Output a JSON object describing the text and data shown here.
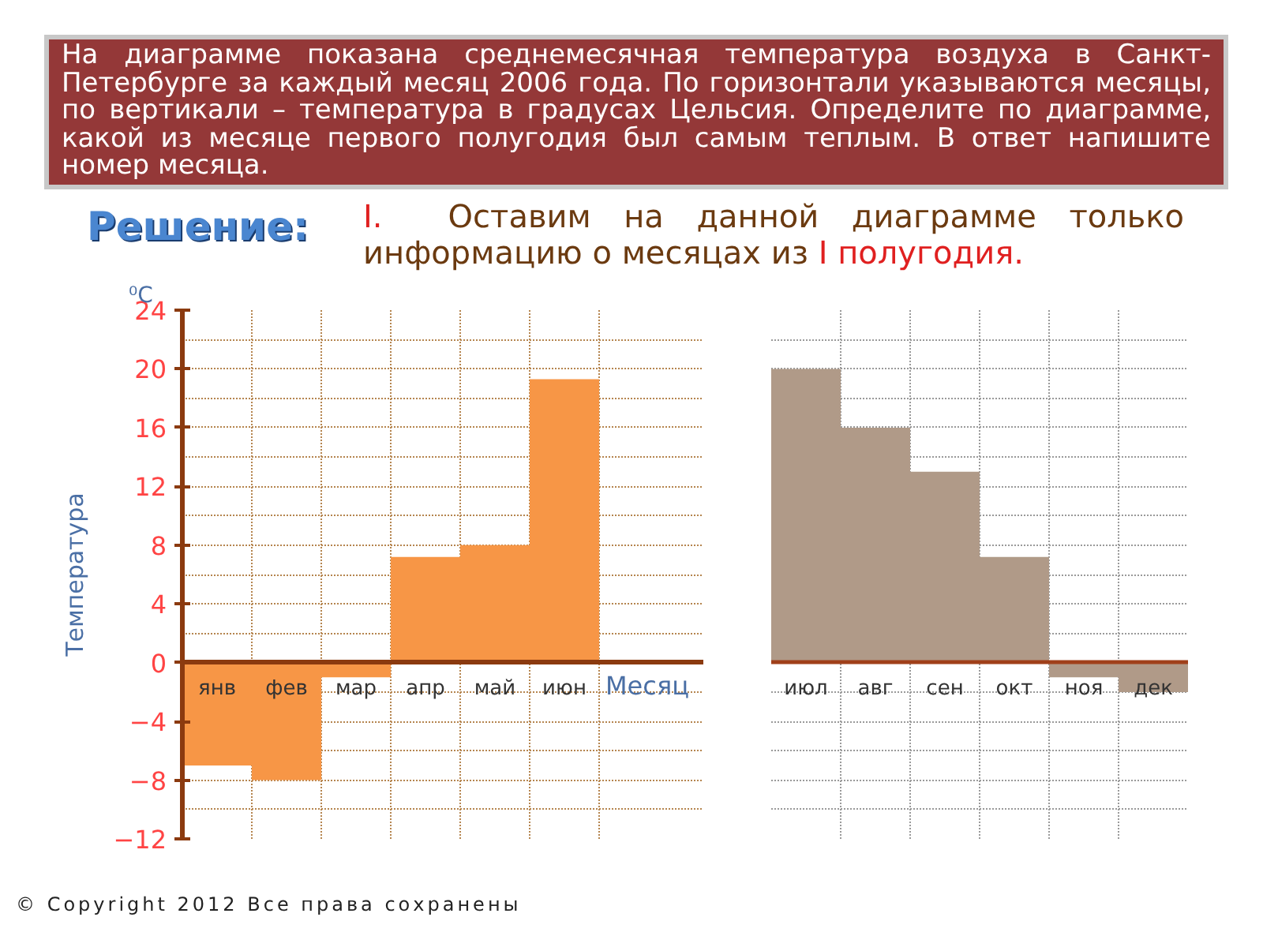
{
  "chart_data": [
    {
      "type": "bar",
      "title": "На диаграмме показана среднемесячная температура воздуха в Санкт-Петербурге за каждый месяц 2006 года. По горизонтали указываются месяцы, по вертикали – температура в градусах Цельсия. Определите по диаграмме, какой из месяце первого полугодия был самым теплым. В ответ напишите номер месяца.",
      "annotations": [
        "Решение:",
        "I.",
        "Оставим на данной диаграмме только информацию о месяцах из",
        "I полугодия.",
        "⁰C",
        "© Copyright 2012 Все права сохранены"
      ],
      "xlabel": "Месяц",
      "ylabel": "Температура",
      "categories": [
        "янв",
        "фев",
        "мар",
        "апр",
        "май",
        "июн"
      ],
      "values": [
        -7,
        -8,
        -1,
        7.2,
        8,
        19.3
      ],
      "color": "#f79646",
      "ylim": [
        -12,
        24
      ],
      "yticks": [
        -12,
        -8,
        -4,
        0,
        4,
        8,
        12,
        16,
        20,
        24
      ],
      "grid": true
    },
    {
      "type": "bar",
      "categories": [
        "июл",
        "авг",
        "сен",
        "окт",
        "ноя",
        "дек"
      ],
      "values": [
        20,
        16,
        13,
        7.2,
        -1,
        -2
      ],
      "color": "#b09a88",
      "ylim": [
        -12,
        24
      ],
      "yticks": [
        -12,
        -8,
        -4,
        0,
        4,
        8,
        12,
        16,
        20,
        24
      ],
      "grid": true,
      "tick_labels": "x"
    }
  ]
}
